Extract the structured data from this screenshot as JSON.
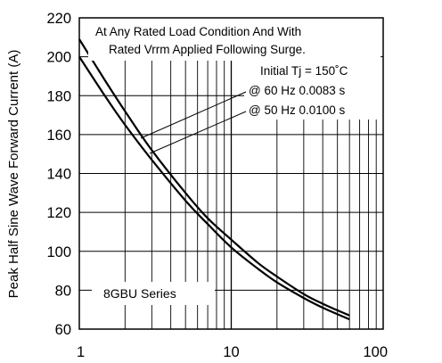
{
  "chart_data": {
    "type": "line",
    "title": "",
    "xlabel": "",
    "ylabel": "Peak Half Sine Wave Forward Current (A)",
    "x_scale": "log",
    "xlim": [
      1,
      100
    ],
    "ylim": [
      60,
      220
    ],
    "x_ticks": [
      1,
      10,
      100
    ],
    "x_tick_labels": [
      "1",
      "10",
      "100"
    ],
    "y_ticks": [
      60,
      80,
      100,
      120,
      140,
      160,
      180,
      200,
      220
    ],
    "y_tick_labels": [
      "60",
      "80",
      "100",
      "120",
      "140",
      "160",
      "180",
      "200",
      "220"
    ],
    "grid": true,
    "annotations": {
      "condition_line1": "At Any Rated Load Condition And With",
      "condition_line2": "Rated Vrrm Applied Following Surge.",
      "initial_tj": "Initial Tj = 150˚C",
      "label_60hz": "@ 60 Hz 0.0083 s",
      "label_50hz": "@ 50 Hz 0.0100 s",
      "series_label": "8GBU  Series"
    },
    "series": [
      {
        "name": "@ 60 Hz 0.0083 s",
        "x": [
          1,
          1.5,
          2,
          3,
          5,
          7,
          10,
          15,
          20,
          30,
          40,
          60
        ],
        "values": [
          209,
          187,
          172,
          152,
          130,
          117,
          106,
          94,
          87,
          78,
          73,
          67
        ]
      },
      {
        "name": "@ 50 Hz 0.0100 s",
        "x": [
          1,
          1.5,
          2,
          3,
          5,
          7,
          10,
          15,
          20,
          30,
          40,
          60
        ],
        "values": [
          200,
          179,
          165,
          147,
          126,
          114,
          102,
          91,
          84,
          76,
          71,
          65
        ]
      }
    ]
  }
}
